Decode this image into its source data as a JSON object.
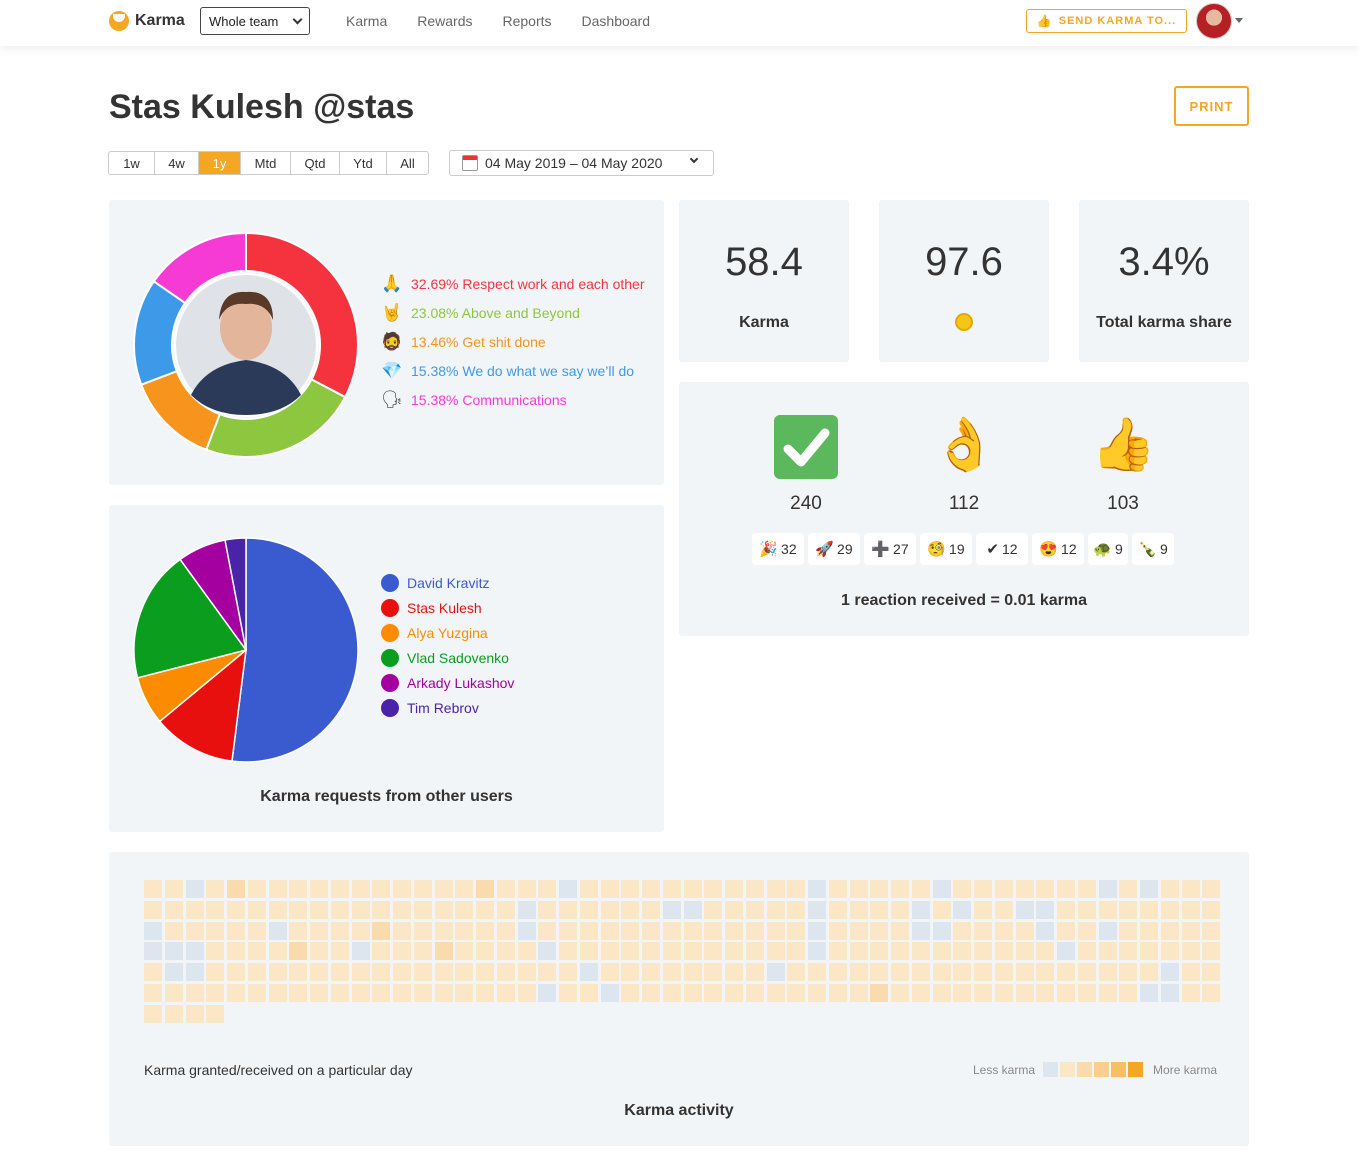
{
  "nav": {
    "brand": "Karma",
    "team_select": "Whole team",
    "links": [
      "Karma",
      "Rewards",
      "Reports",
      "Dashboard"
    ],
    "send_button": "SEND KARMA TO..."
  },
  "profile": {
    "title": "Stas Kulesh @stas",
    "print_label": "PRINT"
  },
  "periods": [
    {
      "label": "1w",
      "active": false
    },
    {
      "label": "4w",
      "active": false
    },
    {
      "label": "1y",
      "active": true
    },
    {
      "label": "Mtd",
      "active": false
    },
    {
      "label": "Qtd",
      "active": false
    },
    {
      "label": "Ytd",
      "active": false
    },
    {
      "label": "All",
      "active": false
    }
  ],
  "date_range": "04 May 2019 – 04 May 2020",
  "values_chart": {
    "items": [
      {
        "icon": "folded-hands-icon",
        "glyph": "🙏",
        "label": "32.69% Respect work and each other",
        "percent": 32.69,
        "color": "#f5333f"
      },
      {
        "icon": "rock-on-hand-icon",
        "glyph": "🤘",
        "label": "23.08% Above and Beyond",
        "percent": 23.08,
        "color": "#8dc63f"
      },
      {
        "icon": "face-icon",
        "glyph": "🧔",
        "label": "13.46% Get shit done",
        "percent": 13.46,
        "color": "#f7941d"
      },
      {
        "icon": "gem-icon",
        "glyph": "💎",
        "label": "15.38% We do what we say we’ll do",
        "percent": 15.38,
        "color": "#3d9ae8"
      },
      {
        "icon": "speaking-head-icon",
        "glyph": "🗣",
        "label": "15.38% Communications",
        "percent": 15.38,
        "color": "#f53bd4"
      }
    ]
  },
  "stats": [
    {
      "value": "58.4",
      "label": "Karma"
    },
    {
      "value": "97.6",
      "label": "",
      "icon": "coin-icon"
    },
    {
      "value": "3.4%",
      "label": "Total karma share"
    }
  ],
  "reactions": {
    "top": [
      {
        "icon": "check-mark-icon",
        "glyph": "✅",
        "count": "240"
      },
      {
        "icon": "ok-hand-icon",
        "glyph": "👌",
        "count": "112"
      },
      {
        "icon": "thumbs-up-icon",
        "glyph": "👍",
        "count": "103"
      }
    ],
    "chips": [
      {
        "icon": "party-popper-icon",
        "glyph": "🎉",
        "count": "32"
      },
      {
        "icon": "rocket-icon",
        "glyph": "🚀",
        "count": "29"
      },
      {
        "icon": "plus-icon",
        "glyph": "➕",
        "count": "27"
      },
      {
        "icon": "monocle-icon",
        "glyph": "🧐",
        "count": "19"
      },
      {
        "icon": "heavy-check-icon",
        "glyph": "✔",
        "count": "12"
      },
      {
        "icon": "heart-eyes-icon",
        "glyph": "😍",
        "count": "12"
      },
      {
        "icon": "turtle-icon",
        "glyph": "🐢",
        "count": "9"
      },
      {
        "icon": "bottle-icon",
        "glyph": "🍾",
        "count": "9"
      }
    ],
    "note": "1 reaction received = 0.01 karma"
  },
  "chart_data": {
    "type": "pie",
    "title": "Karma requests from other users",
    "categories": [
      "David Kravitz",
      "Stas Kulesh",
      "Alya Yuzgina",
      "Vlad Sadovenko",
      "Arkady Lukashov",
      "Tim Rebrov"
    ],
    "values": [
      52,
      12,
      7,
      19,
      7,
      3
    ],
    "colors": [
      "#3a5bcf",
      "#e8100f",
      "#fb8c00",
      "#0a9d1e",
      "#a4009f",
      "#4b23a8"
    ],
    "legend": "right"
  },
  "activity": {
    "caption": "Karma granted/received on a particular day",
    "less": "Less karma",
    "more": "More karma",
    "title": "Karma activity",
    "palette": [
      "#dde6ef",
      "#fbe6c6",
      "#f9dbae",
      "#f8cf8f",
      "#f6bf62",
      "#f5a623"
    ],
    "levels": "1100111111001101100111111111211111111111111101111111211111111111111111111011111211111111111111111111121111111111211111111111111001110111010201111101111011111110111111101111111101111110111111111111111111111111111111011111111100001111111111111111111111211111110100111101011111011111111111111111101011111100111111101111111111010111111111110111101111100111111111111111112111111111111111101000110111111111011111111111101111111111111111111111111111101111111112111111111111111001111000111110101111111111101100111100111101111011111211111111111111111111101010011010111111111111101111101111111111111111110111111111111111111112111101100011111011111011111011001111"
  }
}
